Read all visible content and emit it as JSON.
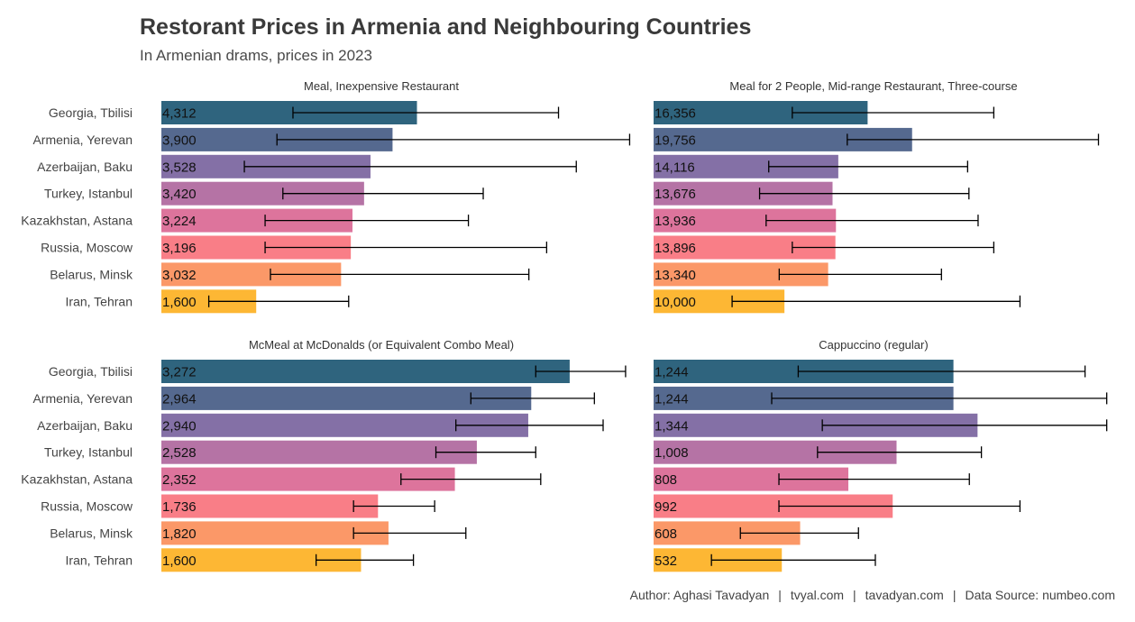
{
  "title": "Restorant Prices in Armenia and Neighbouring Countries",
  "subtitle": "In Armenian drams, prices in 2023",
  "footer": {
    "author": "Author: Aghasi Tavadyan",
    "site1": "tvyal.com",
    "site2": "tavadyan.com",
    "source": "Data Source: numbeo.com",
    "separator": "|"
  },
  "chart_data": [
    {
      "type": "bar",
      "orientation": "horizontal",
      "title": "Meal, Inexpensive Restaurant",
      "categories": [
        "Georgia, Tbilisi",
        "Armenia, Yerevan",
        "Azerbaijan, Baku",
        "Turkey, Istanbul",
        "Kazakhstan, Astana",
        "Russia, Moscow",
        "Belarus, Minsk",
        "Iran, Tehran"
      ],
      "values": [
        4312,
        3900,
        3528,
        3420,
        3224,
        3196,
        3032,
        1600
      ],
      "labels": [
        "4,312",
        "3,900",
        "3,528",
        "3,420",
        "3,224",
        "3,196",
        "3,032",
        "1,600"
      ],
      "error_low": [
        2220,
        1950,
        1400,
        2050,
        1750,
        1750,
        1840,
        800
      ],
      "error_high": [
        6700,
        7900,
        7000,
        5430,
        5180,
        6500,
        6200,
        3160
      ],
      "xlim": [
        0,
        8000
      ]
    },
    {
      "type": "bar",
      "orientation": "horizontal",
      "title": "Meal for 2 People, Mid-range Restaurant, Three-course",
      "categories": [
        "Georgia, Tbilisi",
        "Armenia, Yerevan",
        "Azerbaijan, Baku",
        "Turkey, Istanbul",
        "Kazakhstan, Astana",
        "Russia, Moscow",
        "Belarus, Minsk",
        "Iran, Tehran"
      ],
      "values": [
        16356,
        19756,
        14116,
        13676,
        13936,
        13896,
        13340,
        10000
      ],
      "labels": [
        "16,356",
        "19,756",
        "14,116",
        "13,676",
        "13,936",
        "13,896",
        "13,340",
        "10,000"
      ],
      "error_low": [
        10600,
        14800,
        8800,
        8100,
        8600,
        10600,
        9600,
        6000
      ],
      "error_high": [
        26000,
        34000,
        24000,
        24100,
        24800,
        26000,
        22000,
        28000
      ],
      "xlim": [
        0,
        35000
      ]
    },
    {
      "type": "bar",
      "orientation": "horizontal",
      "title": "McMeal at McDonalds (or Equivalent Combo Meal)",
      "categories": [
        "Georgia, Tbilisi",
        "Armenia, Yerevan",
        "Azerbaijan, Baku",
        "Turkey, Istanbul",
        "Kazakhstan, Astana",
        "Russia, Moscow",
        "Belarus, Minsk",
        "Iran, Tehran"
      ],
      "values": [
        3272,
        2964,
        2940,
        2528,
        2352,
        1736,
        1820,
        1600
      ],
      "labels": [
        "3,272",
        "2,964",
        "2,940",
        "2,528",
        "2,352",
        "1,736",
        "1,820",
        "1,600"
      ],
      "error_low": [
        3000,
        2480,
        2360,
        2200,
        1920,
        1540,
        1540,
        1240
      ],
      "error_high": [
        3720,
        3470,
        3540,
        3000,
        3040,
        2190,
        2440,
        2020
      ],
      "xlim": [
        0,
        3800
      ]
    },
    {
      "type": "bar",
      "orientation": "horizontal",
      "title": "Cappuccino (regular)",
      "categories": [
        "Georgia, Tbilisi",
        "Armenia, Yerevan",
        "Azerbaijan, Baku",
        "Turkey, Istanbul",
        "Kazakhstan, Astana",
        "Russia, Moscow",
        "Belarus, Minsk",
        "Iran, Tehran"
      ],
      "values": [
        1244,
        1244,
        1344,
        1008,
        808,
        992,
        608,
        532
      ],
      "labels": [
        "1,244",
        "1,244",
        "1,344",
        "1,008",
        "808",
        "992",
        "608",
        "532"
      ],
      "error_low": [
        600,
        490,
        700,
        680,
        520,
        520,
        360,
        240
      ],
      "error_high": [
        1790,
        1880,
        1880,
        1360,
        1310,
        1520,
        850,
        920
      ],
      "xlim": [
        0,
        1900
      ]
    }
  ],
  "colors": [
    "#2f647e",
    "#55698f",
    "#8470a6",
    "#b573a5",
    "#dd749c",
    "#f97e87",
    "#fb9868",
    "#fdb734"
  ],
  "error_bar_color": "#000000"
}
